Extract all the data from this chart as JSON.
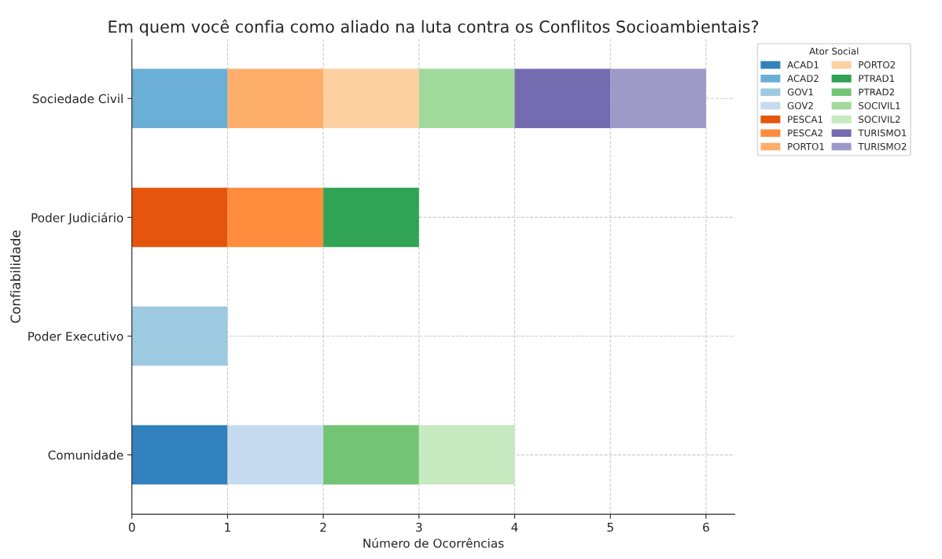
{
  "chart_data": {
    "type": "bar",
    "orientation": "horizontal",
    "stacked": true,
    "title": "Em quem você confia como aliado na luta contra os Conflitos Socioambientais?",
    "xlabel": "Número de Ocorrências",
    "ylabel": "Confiabilidade",
    "legend_title": "Ator Social",
    "categories": [
      "Sociedade Civil",
      "Poder Judiciário",
      "Poder Executivo",
      "Comunidade"
    ],
    "xlim": [
      0,
      6.3
    ],
    "xticks": [
      0,
      1,
      2,
      3,
      4,
      5,
      6
    ],
    "grid": true,
    "legend": "top right",
    "series": [
      {
        "name": "ACAD1",
        "color": "#3182bd",
        "values": [
          null,
          null,
          null,
          1
        ]
      },
      {
        "name": "ACAD2",
        "color": "#6baed6",
        "values": [
          1,
          null,
          null,
          null
        ]
      },
      {
        "name": "GOV1",
        "color": "#9ecae1",
        "values": [
          null,
          null,
          1,
          null
        ]
      },
      {
        "name": "GOV2",
        "color": "#c6dbef",
        "values": [
          null,
          null,
          null,
          1
        ]
      },
      {
        "name": "PESCA1",
        "color": "#e6550d",
        "values": [
          null,
          1,
          null,
          null
        ]
      },
      {
        "name": "PESCA2",
        "color": "#fd8d3c",
        "values": [
          null,
          1,
          null,
          null
        ]
      },
      {
        "name": "PORTO1",
        "color": "#fdae6b",
        "values": [
          1,
          null,
          null,
          null
        ]
      },
      {
        "name": "PORTO2",
        "color": "#fdd0a2",
        "values": [
          1,
          null,
          null,
          null
        ]
      },
      {
        "name": "PTRAD1",
        "color": "#31a354",
        "values": [
          null,
          1,
          null,
          null
        ]
      },
      {
        "name": "PTRAD2",
        "color": "#74c476",
        "values": [
          null,
          null,
          null,
          1
        ]
      },
      {
        "name": "SOCIVIL1",
        "color": "#a1d99b",
        "values": [
          1,
          null,
          null,
          null
        ]
      },
      {
        "name": "SOCIVIL2",
        "color": "#c7e9c0",
        "values": [
          null,
          null,
          null,
          1
        ]
      },
      {
        "name": "TURISMO1",
        "color": "#756bb1",
        "values": [
          1,
          null,
          null,
          null
        ]
      },
      {
        "name": "TURISMO2",
        "color": "#9e9ac8",
        "values": [
          1,
          null,
          null,
          null
        ]
      }
    ]
  }
}
